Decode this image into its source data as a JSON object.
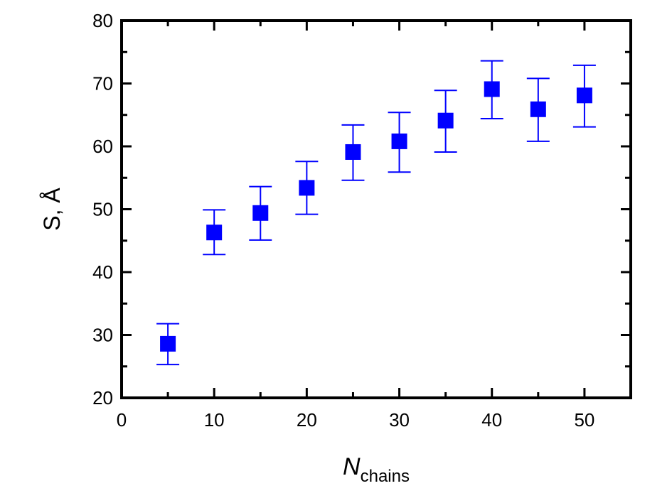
{
  "chart_data": {
    "type": "scatter",
    "xlabel": "N",
    "xlabel_sub": "chains",
    "ylabel": "S, Å",
    "xlim": [
      0,
      55
    ],
    "ylim": [
      20,
      80
    ],
    "xticks": [
      0,
      10,
      20,
      30,
      40,
      50
    ],
    "yticks": [
      20,
      30,
      40,
      50,
      60,
      70,
      80
    ],
    "grid": false,
    "legend": "none",
    "marker_color": "#0000ff",
    "series": [
      {
        "x": [
          5,
          10,
          15,
          20,
          25,
          30,
          35,
          40,
          45,
          50
        ],
        "y": [
          28.6,
          46.3,
          49.4,
          53.4,
          59.1,
          60.8,
          64.1,
          69.1,
          65.9,
          68.1
        ],
        "y_err_low": [
          25.3,
          42.8,
          45.1,
          49.2,
          54.6,
          55.9,
          59.1,
          64.4,
          60.8,
          63.1
        ],
        "y_err_high": [
          31.8,
          49.9,
          53.6,
          57.6,
          63.4,
          65.4,
          68.9,
          73.6,
          70.8,
          72.9
        ]
      }
    ]
  }
}
